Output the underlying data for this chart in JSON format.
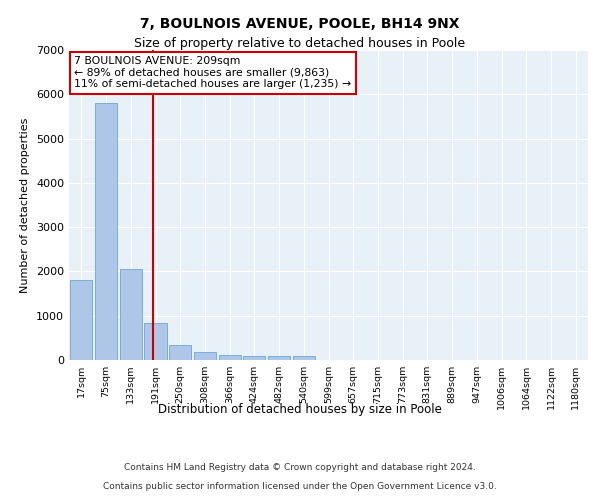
{
  "title1": "7, BOULNOIS AVENUE, POOLE, BH14 9NX",
  "title2": "Size of property relative to detached houses in Poole",
  "xlabel": "Distribution of detached houses by size in Poole",
  "ylabel": "Number of detached properties",
  "bin_labels": [
    "17sqm",
    "75sqm",
    "133sqm",
    "191sqm",
    "250sqm",
    "308sqm",
    "366sqm",
    "424sqm",
    "482sqm",
    "540sqm",
    "599sqm",
    "657sqm",
    "715sqm",
    "773sqm",
    "831sqm",
    "889sqm",
    "947sqm",
    "1006sqm",
    "1064sqm",
    "1122sqm",
    "1180sqm"
  ],
  "bar_heights": [
    1800,
    5800,
    2060,
    830,
    340,
    190,
    120,
    100,
    80,
    90,
    10,
    5,
    5,
    5,
    5,
    5,
    5,
    5,
    5,
    5,
    5
  ],
  "bar_color": "#aec6e8",
  "bar_edge_color": "#5b9bd5",
  "ylim": [
    0,
    7000
  ],
  "yticks": [
    0,
    1000,
    2000,
    3000,
    4000,
    5000,
    6000,
    7000
  ],
  "annotation_title": "7 BOULNOIS AVENUE: 209sqm",
  "annotation_line1": "← 89% of detached houses are smaller (9,863)",
  "annotation_line2": "11% of semi-detached houses are larger (1,235) →",
  "red_color": "#cc0000",
  "red_line_x": 2.88,
  "annotation_box_color": "#ffffff",
  "annotation_box_edgecolor": "#cc0000",
  "footer1": "Contains HM Land Registry data © Crown copyright and database right 2024.",
  "footer2": "Contains public sector information licensed under the Open Government Licence v3.0.",
  "bg_color": "#e8f0f8",
  "fig_bg_color": "#ffffff"
}
